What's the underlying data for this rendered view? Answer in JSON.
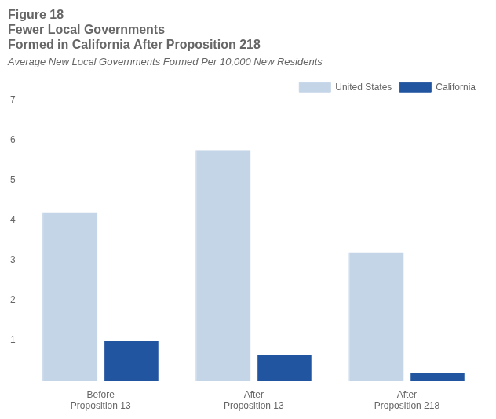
{
  "chart_data": {
    "type": "bar",
    "title": [
      "Figure 18",
      "Fewer Local Governments",
      "Formed in California After Proposition 218"
    ],
    "subtitle": "Average New Local Governments Formed Per 10,000 New Residents",
    "categories": [
      "Before\nProposition 13",
      "After\nProposition 13",
      "After\nProposition 218"
    ],
    "series": [
      {
        "name": "United States",
        "color": "#c5d5e8",
        "values": [
          4.2,
          5.75,
          3.2
        ]
      },
      {
        "name": "California",
        "color": "#2255a0",
        "values": [
          1.0,
          0.65,
          0.2
        ]
      }
    ],
    "ylim": [
      0,
      7
    ],
    "yticks": [
      1,
      2,
      3,
      4,
      5,
      6,
      7
    ],
    "grid": false,
    "legend": "upper right"
  }
}
